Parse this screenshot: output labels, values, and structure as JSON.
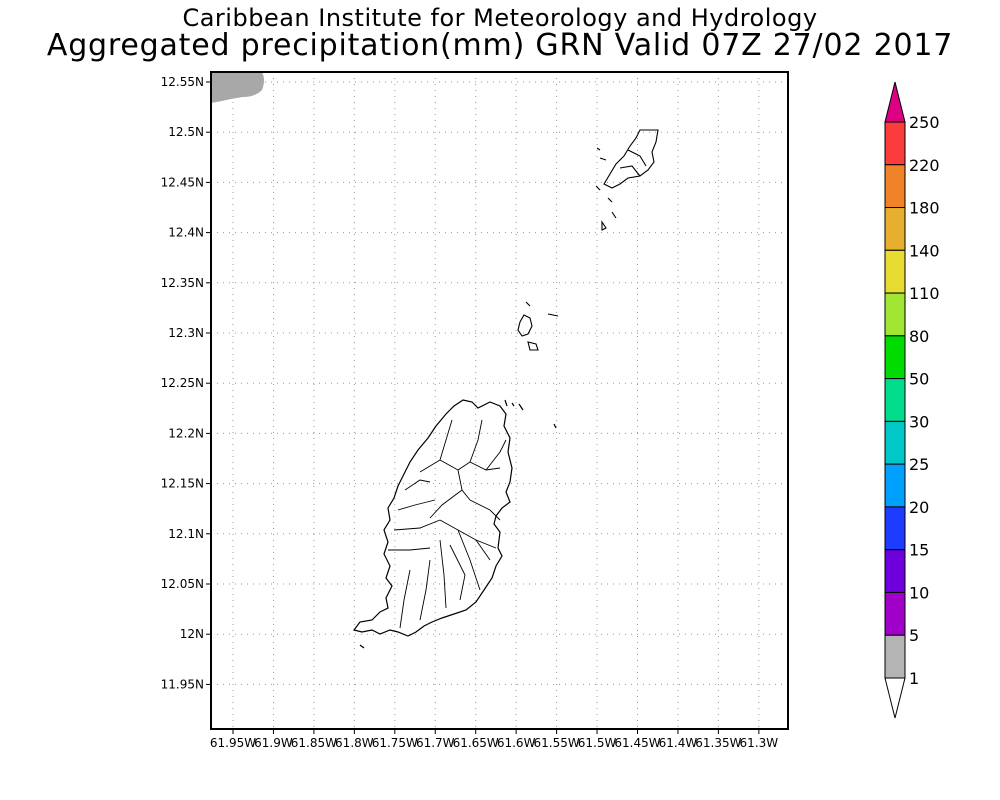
{
  "title": {
    "line1": "Caribbean Institute for Meteorology and Hydrology",
    "line2": "Aggregated precipitation(mm) GRN Valid 07Z 27/02 2017"
  },
  "map": {
    "lat_ticks": [
      "12.55N",
      "12.5N",
      "12.45N",
      "12.4N",
      "12.35N",
      "12.3N",
      "12.25N",
      "12.2N",
      "12.15N",
      "12.1N",
      "12.05N",
      "12N",
      "11.95N"
    ],
    "lon_ticks": [
      "61.95W",
      "61.9W",
      "61.85W",
      "61.8W",
      "61.75W",
      "61.7W",
      "61.65W",
      "61.6W",
      "61.55W",
      "61.5W",
      "61.45W",
      "61.4W",
      "61.35W",
      "61.3W"
    ],
    "grid": true,
    "precip_area_color": "#a8a8a8"
  },
  "legend": {
    "levels": [
      "1",
      "5",
      "10",
      "15",
      "20",
      "25",
      "30",
      "50",
      "80",
      "110",
      "140",
      "180",
      "220",
      "250"
    ],
    "colors": [
      "#b4b4b4",
      "#a000c8",
      "#6e00dc",
      "#1e3cff",
      "#00a0ff",
      "#00c8c8",
      "#00dc8c",
      "#00dc00",
      "#a0e632",
      "#e6dc32",
      "#e6af2d",
      "#f08228",
      "#fa3c3c",
      "#dc0082"
    ],
    "under_color": "#ffffff"
  }
}
